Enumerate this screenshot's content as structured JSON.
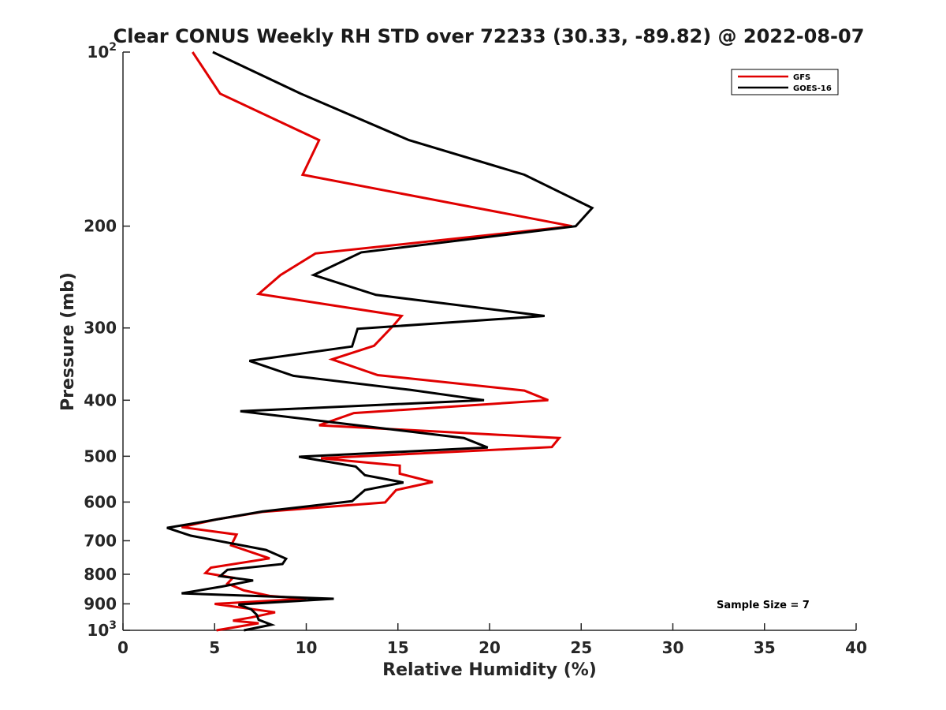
{
  "chart_data": {
    "type": "line",
    "title": "Clear CONUS Weekly RH STD over 72233 (30.33, -89.82) @ 2022-08-07",
    "xlabel": "Relative Humidity (%)",
    "ylabel": "Pressure (mb)",
    "xlim": [
      0,
      40
    ],
    "ylim": [
      100,
      1000
    ],
    "yscale": "log",
    "y_reversed": true,
    "grid": false,
    "legend_position": "top-right",
    "x_ticks": [
      {
        "value": 0,
        "label": "0"
      },
      {
        "value": 5,
        "label": "5"
      },
      {
        "value": 10,
        "label": "10"
      },
      {
        "value": 15,
        "label": "15"
      },
      {
        "value": 20,
        "label": "20"
      },
      {
        "value": 25,
        "label": "25"
      },
      {
        "value": 30,
        "label": "30"
      },
      {
        "value": 35,
        "label": "35"
      },
      {
        "value": 40,
        "label": "40"
      }
    ],
    "y_ticks": [
      {
        "value": 100,
        "label": "10",
        "sup": "2"
      },
      {
        "value": 200,
        "label": "200"
      },
      {
        "value": 300,
        "label": "300"
      },
      {
        "value": 400,
        "label": "400"
      },
      {
        "value": 500,
        "label": "500"
      },
      {
        "value": 600,
        "label": "600"
      },
      {
        "value": 700,
        "label": "700"
      },
      {
        "value": 800,
        "label": "800"
      },
      {
        "value": 900,
        "label": "900"
      },
      {
        "value": 1000,
        "label": "10",
        "sup": "3"
      }
    ],
    "series": [
      {
        "name": "GFS",
        "color": "#e00000",
        "points": [
          [
            3.8,
            100
          ],
          [
            5.3,
            118
          ],
          [
            10.7,
            142
          ],
          [
            9.8,
            163
          ],
          [
            19.3,
            186
          ],
          [
            24.5,
            200
          ],
          [
            10.5,
            223
          ],
          [
            8.6,
            243
          ],
          [
            7.4,
            262
          ],
          [
            15.2,
            286
          ],
          [
            14.8,
            296
          ],
          [
            13.7,
            322
          ],
          [
            11.4,
            340
          ],
          [
            13.9,
            362
          ],
          [
            21.9,
            385
          ],
          [
            23.2,
            400
          ],
          [
            12.6,
            421
          ],
          [
            10.7,
            442
          ],
          [
            23.8,
            465
          ],
          [
            23.4,
            482
          ],
          [
            10.8,
            504
          ],
          [
            15.1,
            519
          ],
          [
            15.1,
            536
          ],
          [
            16.9,
            554
          ],
          [
            14.9,
            572
          ],
          [
            14.3,
            601
          ],
          [
            7.6,
            624
          ],
          [
            5.1,
            643
          ],
          [
            3.2,
            663
          ],
          [
            6.2,
            683
          ],
          [
            5.9,
            713
          ],
          [
            8.0,
            751
          ],
          [
            4.8,
            779
          ],
          [
            4.5,
            796
          ],
          [
            6.0,
            811
          ],
          [
            5.7,
            830
          ],
          [
            6.6,
            853
          ],
          [
            8.0,
            872
          ],
          [
            10.0,
            882
          ],
          [
            5.0,
            900
          ],
          [
            8.3,
            931
          ],
          [
            7.0,
            950
          ],
          [
            6.0,
            962
          ],
          [
            7.4,
            972
          ],
          [
            5.1,
            1000
          ]
        ]
      },
      {
        "name": "GOES-16",
        "color": "#000000",
        "points": [
          [
            4.9,
            100
          ],
          [
            9.7,
            118
          ],
          [
            15.6,
            142
          ],
          [
            21.9,
            163
          ],
          [
            25.6,
            186
          ],
          [
            24.7,
            200
          ],
          [
            13.0,
            222
          ],
          [
            10.4,
            243
          ],
          [
            13.8,
            263
          ],
          [
            23.0,
            286
          ],
          [
            12.8,
            301
          ],
          [
            12.5,
            323
          ],
          [
            6.9,
            342
          ],
          [
            9.3,
            363
          ],
          [
            15.7,
            384
          ],
          [
            19.7,
            400
          ],
          [
            6.4,
            418
          ],
          [
            12.3,
            440
          ],
          [
            18.6,
            465
          ],
          [
            19.9,
            483
          ],
          [
            9.6,
            501
          ],
          [
            12.7,
            521
          ],
          [
            13.2,
            539
          ],
          [
            15.3,
            555
          ],
          [
            13.2,
            572
          ],
          [
            12.5,
            598
          ],
          [
            7.6,
            623
          ],
          [
            4.5,
            648
          ],
          [
            2.4,
            665
          ],
          [
            3.7,
            686
          ],
          [
            7.8,
            726
          ],
          [
            8.9,
            752
          ],
          [
            8.7,
            768
          ],
          [
            5.7,
            786
          ],
          [
            5.3,
            806
          ],
          [
            7.1,
            820
          ],
          [
            5.4,
            840
          ],
          [
            3.2,
            863
          ],
          [
            11.5,
            882
          ],
          [
            6.3,
            902
          ],
          [
            7.0,
            920
          ],
          [
            7.3,
            940
          ],
          [
            7.4,
            959
          ],
          [
            8.1,
            978
          ],
          [
            6.6,
            1000
          ]
        ]
      }
    ],
    "annotation": "Sample Size = 7"
  }
}
